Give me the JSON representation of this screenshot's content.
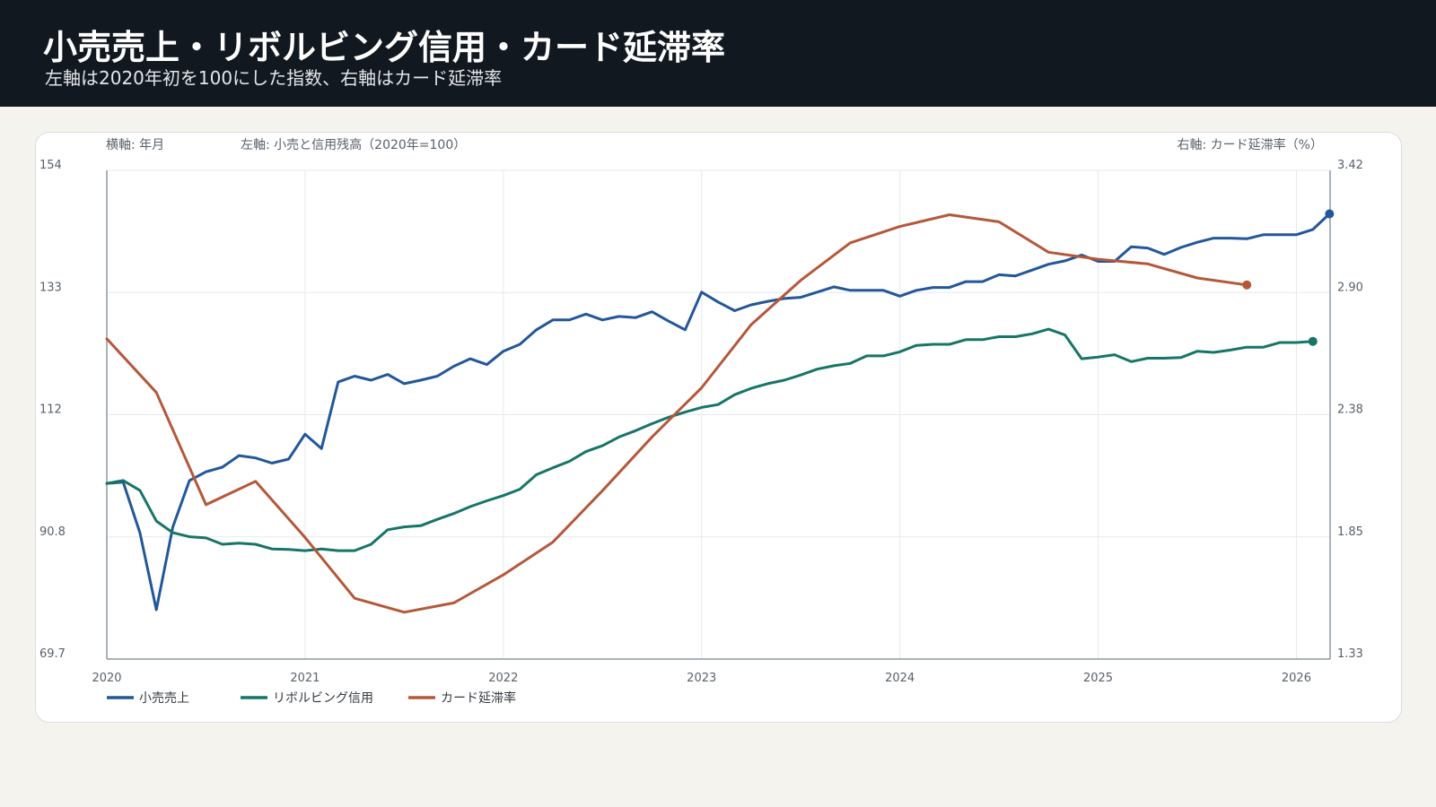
{
  "header": {
    "title": "小売売上・リボルビング信用・カード延滞率",
    "subtitle": "左軸は2020年初を100にした指数、右軸はカード延滞率"
  },
  "colors": {
    "header_bg": "#121820",
    "page_bg": "#f5f3ee",
    "retail": "#23579a",
    "revolving": "#177567",
    "delinquency": "#b5583a"
  },
  "chart_data": {
    "type": "line",
    "xlabel": "横軸: 年月",
    "ylabel_left": "左軸: 小売と信用残高（2020年=100）",
    "ylabel_right": "右軸: カード延滞率（%）",
    "x_ticks": [
      "2020",
      "2021",
      "2022",
      "2023",
      "2024",
      "2025",
      "2026"
    ],
    "xlim": [
      2020.0,
      2026.17
    ],
    "y_left_ticks": [
      "154",
      "133",
      "112",
      "90.8",
      "69.7"
    ],
    "y_right_ticks": [
      "3.42",
      "2.90",
      "2.38",
      "1.85",
      "1.33"
    ],
    "ylim_left": [
      69.7,
      154
    ],
    "ylim_right": [
      1.33,
      3.42
    ],
    "grid": true,
    "legend_position": "bottom-left",
    "series": [
      {
        "name": "小売売上",
        "axis": "left",
        "color": "#23579a",
        "x": [
          2020.0,
          2020.083,
          2020.167,
          2020.25,
          2020.333,
          2020.417,
          2020.5,
          2020.583,
          2020.667,
          2020.75,
          2020.833,
          2020.917,
          2021.0,
          2021.083,
          2021.167,
          2021.25,
          2021.333,
          2021.417,
          2021.5,
          2021.583,
          2021.667,
          2021.75,
          2021.833,
          2021.917,
          2022.0,
          2022.083,
          2022.167,
          2022.25,
          2022.333,
          2022.417,
          2022.5,
          2022.583,
          2022.667,
          2022.75,
          2022.833,
          2022.917,
          2023.0,
          2023.083,
          2023.167,
          2023.25,
          2023.333,
          2023.417,
          2023.5,
          2023.583,
          2023.667,
          2023.75,
          2023.833,
          2023.917,
          2024.0,
          2024.083,
          2024.167,
          2024.25,
          2024.333,
          2024.417,
          2024.5,
          2024.583,
          2024.667,
          2024.75,
          2024.833,
          2024.917,
          2025.0,
          2025.083,
          2025.167,
          2025.25,
          2025.333,
          2025.417,
          2025.5,
          2025.583,
          2025.667,
          2025.75,
          2025.833,
          2025.917,
          2026.0,
          2026.083,
          2026.167
        ],
        "values": [
          100.0,
          100.2,
          91.5,
          78.2,
          92.5,
          100.5,
          102.0,
          102.8,
          104.8,
          104.4,
          103.5,
          104.2,
          108.5,
          106.0,
          117.5,
          118.5,
          117.8,
          118.8,
          117.2,
          117.8,
          118.5,
          120.2,
          121.5,
          120.5,
          122.8,
          124.0,
          126.5,
          128.2,
          128.2,
          129.2,
          128.2,
          128.8,
          128.6,
          129.6,
          128.0,
          126.5,
          133.0,
          131.3,
          129.8,
          130.8,
          131.4,
          131.9,
          132.1,
          133.0,
          133.9,
          133.3,
          133.3,
          133.3,
          132.3,
          133.3,
          133.8,
          133.8,
          134.8,
          134.8,
          136.0,
          135.8,
          136.8,
          137.8,
          138.4,
          139.4,
          138.3,
          138.3,
          140.8,
          140.6,
          139.5,
          140.7,
          141.6,
          142.3,
          142.3,
          142.2,
          142.9,
          142.9,
          142.9,
          143.8,
          146.5
        ]
      },
      {
        "name": "リボルビング信用",
        "axis": "left",
        "color": "#177567",
        "x": [
          2020.0,
          2020.083,
          2020.167,
          2020.25,
          2020.333,
          2020.417,
          2020.5,
          2020.583,
          2020.667,
          2020.75,
          2020.833,
          2020.917,
          2021.0,
          2021.083,
          2021.167,
          2021.25,
          2021.333,
          2021.417,
          2021.5,
          2021.583,
          2021.667,
          2021.75,
          2021.833,
          2021.917,
          2022.0,
          2022.083,
          2022.167,
          2022.25,
          2022.333,
          2022.417,
          2022.5,
          2022.583,
          2022.667,
          2022.75,
          2022.833,
          2022.917,
          2023.0,
          2023.083,
          2023.167,
          2023.25,
          2023.333,
          2023.417,
          2023.5,
          2023.583,
          2023.667,
          2023.75,
          2023.833,
          2023.917,
          2024.0,
          2024.083,
          2024.167,
          2024.25,
          2024.333,
          2024.417,
          2024.5,
          2024.583,
          2024.667,
          2024.75,
          2024.833,
          2024.917,
          2025.0,
          2025.083,
          2025.167,
          2025.25,
          2025.333,
          2025.417,
          2025.5,
          2025.583,
          2025.667,
          2025.75,
          2025.833,
          2025.917,
          2026.0,
          2026.083
        ],
        "values": [
          100.0,
          100.5,
          98.8,
          93.5,
          91.5,
          90.8,
          90.6,
          89.5,
          89.7,
          89.5,
          88.7,
          88.6,
          88.4,
          88.7,
          88.4,
          88.4,
          89.5,
          92.0,
          92.5,
          92.7,
          93.8,
          94.8,
          96.0,
          97.0,
          97.9,
          99.0,
          101.5,
          102.7,
          103.8,
          105.5,
          106.5,
          108.0,
          109.1,
          110.3,
          111.4,
          112.3,
          113.1,
          113.6,
          115.3,
          116.4,
          117.2,
          117.8,
          118.7,
          119.7,
          120.3,
          120.7,
          122.0,
          122.0,
          122.7,
          123.8,
          124.0,
          124.0,
          124.8,
          124.8,
          125.3,
          125.3,
          125.8,
          126.6,
          125.6,
          121.5,
          121.8,
          122.2,
          121.0,
          121.6,
          121.6,
          121.7,
          122.8,
          122.6,
          123.0,
          123.5,
          123.5,
          124.3,
          124.3,
          124.5
        ]
      },
      {
        "name": "カード延滞率",
        "axis": "right",
        "color": "#b5583a",
        "x": [
          2020.0,
          2020.25,
          2020.5,
          2020.75,
          2021.0,
          2021.25,
          2021.5,
          2021.75,
          2022.0,
          2022.25,
          2022.5,
          2022.75,
          2023.0,
          2023.25,
          2023.5,
          2023.75,
          2024.0,
          2024.25,
          2024.5,
          2024.75,
          2025.0,
          2025.25,
          2025.5,
          2025.75
        ],
        "values": [
          2.7,
          2.47,
          1.99,
          2.09,
          1.85,
          1.59,
          1.53,
          1.57,
          1.69,
          1.83,
          2.05,
          2.28,
          2.49,
          2.76,
          2.95,
          3.11,
          3.18,
          3.23,
          3.2,
          3.07,
          3.04,
          3.02,
          2.96,
          2.93
        ]
      }
    ]
  }
}
